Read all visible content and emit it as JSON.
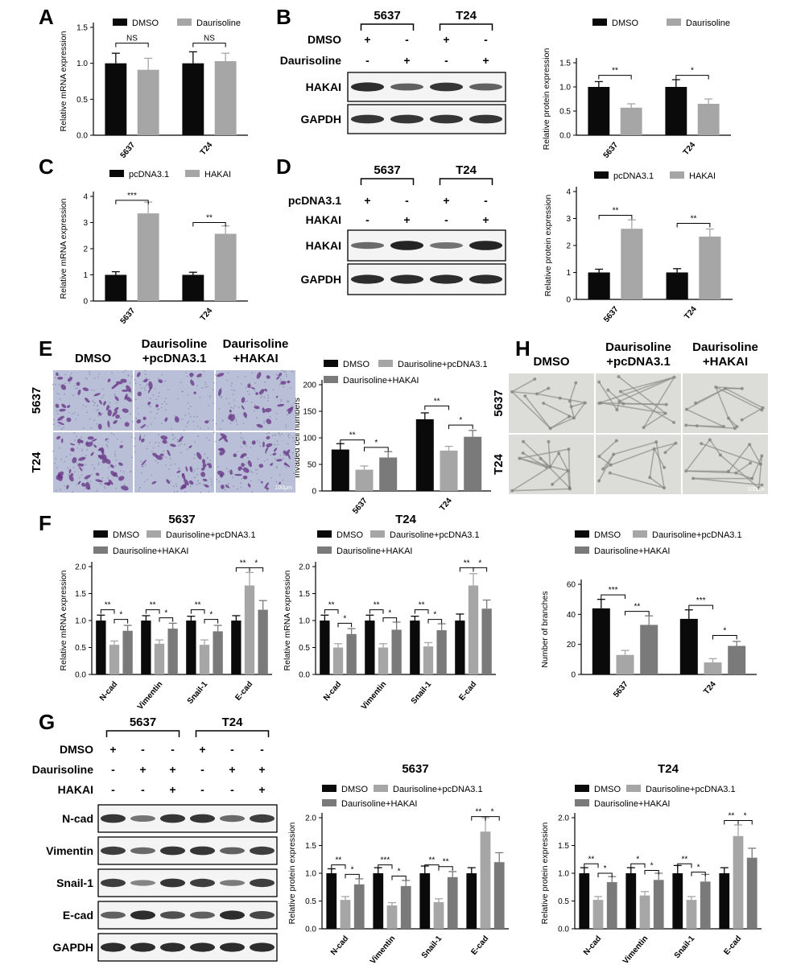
{
  "panels": {
    "A": "A",
    "B": "B",
    "C": "C",
    "D": "D",
    "E": "E",
    "F": "F",
    "G": "G",
    "H": "H"
  },
  "colors": {
    "black": "#0a0a0a",
    "light": "#a6a6a6",
    "dark": "#7a7a7a",
    "stain": "#6a3a8a",
    "stain_bg": "#b9bfd6",
    "tube_bg": "#dcdcd8"
  },
  "blot_B": {
    "groups": [
      "5637",
      "T24"
    ],
    "rows": [
      {
        "label": "DMSO",
        "marks": [
          "+",
          "-",
          "+",
          "-"
        ]
      },
      {
        "label": "Daurisoline",
        "marks": [
          "-",
          "+",
          "-",
          "+"
        ]
      }
    ],
    "bands": [
      {
        "label": "HAKAI",
        "intensity": [
          0.9,
          0.6,
          0.85,
          0.6
        ]
      },
      {
        "label": "GAPDH",
        "intensity": [
          0.85,
          0.85,
          0.85,
          0.85
        ]
      }
    ]
  },
  "blot_D": {
    "groups": [
      "5637",
      "T24"
    ],
    "rows": [
      {
        "label": "pcDNA3.1",
        "marks": [
          "+",
          "-",
          "+",
          "-"
        ]
      },
      {
        "label": "HAKAI",
        "marks": [
          "-",
          "+",
          "-",
          "+"
        ]
      }
    ],
    "bands": [
      {
        "label": "HAKAI",
        "intensity": [
          0.55,
          0.95,
          0.5,
          0.95
        ]
      },
      {
        "label": "GAPDH",
        "intensity": [
          0.9,
          0.9,
          0.9,
          0.9
        ]
      }
    ]
  },
  "blot_G": {
    "groups": [
      "5637",
      "T24"
    ],
    "rows": [
      {
        "label": "DMSO",
        "marks": [
          "+",
          "-",
          "-",
          "+",
          "-",
          "-"
        ]
      },
      {
        "label": "Daurisoline",
        "marks": [
          "-",
          "+",
          "+",
          "-",
          "+",
          "+"
        ]
      },
      {
        "label": "HAKAI",
        "marks": [
          "-",
          "-",
          "+",
          "-",
          "-",
          "+"
        ]
      }
    ],
    "bands": [
      {
        "label": "N-cad",
        "intensity": [
          0.85,
          0.5,
          0.85,
          0.85,
          0.55,
          0.8
        ]
      },
      {
        "label": "Vimentin",
        "intensity": [
          0.8,
          0.55,
          0.85,
          0.85,
          0.6,
          0.8
        ]
      },
      {
        "label": "Snail-1",
        "intensity": [
          0.8,
          0.4,
          0.85,
          0.8,
          0.45,
          0.8
        ]
      },
      {
        "label": "E-cad",
        "intensity": [
          0.6,
          0.9,
          0.7,
          0.6,
          0.9,
          0.75
        ]
      },
      {
        "label": "GAPDH",
        "intensity": [
          0.9,
          0.9,
          0.9,
          0.9,
          0.9,
          0.9
        ]
      }
    ]
  },
  "micro_E": {
    "cols": [
      "DMSO",
      "Daurisoline\n+pcDNA3.1",
      "Daurisoline\n+HAKAI"
    ],
    "rows": [
      "5637",
      "T24"
    ],
    "scale": "100μm",
    "density": [
      [
        0.55,
        0.25,
        0.4
      ],
      [
        0.75,
        0.45,
        0.6
      ]
    ]
  },
  "micro_H": {
    "cols": [
      "DMSO",
      "Daurisoline\n+pcDNA3.1",
      "Daurisoline\n+HAKAI"
    ],
    "rows": [
      "5637",
      "T24"
    ],
    "scale": "100μm"
  },
  "chart_data": [
    {
      "id": "A",
      "type": "bar",
      "title": "",
      "ylabel": "Relative mRNA expression",
      "categories": [
        "5637",
        "T24"
      ],
      "ylim": [
        0,
        1.5
      ],
      "yticks": [
        "0.0",
        "0.5",
        "1.0",
        "1.5"
      ],
      "series": [
        {
          "name": "DMSO",
          "values": [
            1.0,
            1.0
          ],
          "err": [
            0.14,
            0.16
          ]
        },
        {
          "name": "Daurisoline",
          "values": [
            0.91,
            1.03
          ],
          "err": [
            0.16,
            0.11
          ]
        }
      ],
      "sig": [
        {
          "cat": 0,
          "from": 0,
          "to": 1,
          "label": "NS",
          "y": 1.28
        },
        {
          "cat": 1,
          "from": 0,
          "to": 1,
          "label": "NS",
          "y": 1.28
        }
      ]
    },
    {
      "id": "B",
      "type": "bar",
      "title": "",
      "ylabel": "Relative protein expression",
      "categories": [
        "5637",
        "T24"
      ],
      "ylim": [
        0,
        1.5
      ],
      "yticks": [
        "0.0",
        "0.5",
        "1.0",
        "1.5"
      ],
      "series": [
        {
          "name": "DMSO",
          "values": [
            1.0,
            1.0
          ],
          "err": [
            0.11,
            0.15
          ]
        },
        {
          "name": "Daurisoline",
          "values": [
            0.57,
            0.65
          ],
          "err": [
            0.08,
            0.1
          ]
        }
      ],
      "sig": [
        {
          "cat": 0,
          "from": 0,
          "to": 1,
          "label": "**",
          "y": 1.24
        },
        {
          "cat": 1,
          "from": 0,
          "to": 1,
          "label": "*",
          "y": 1.24
        }
      ]
    },
    {
      "id": "C",
      "type": "bar",
      "title": "",
      "ylabel": "Relative mRNA expression",
      "categories": [
        "5637",
        "T24"
      ],
      "ylim": [
        0,
        4
      ],
      "yticks": [
        "0",
        "1",
        "2",
        "3",
        "4"
      ],
      "series": [
        {
          "name": "pcDNA3.1",
          "values": [
            1.0,
            1.0
          ],
          "err": [
            0.12,
            0.1
          ]
        },
        {
          "name": "HAKAI",
          "values": [
            3.35,
            2.57
          ],
          "err": [
            0.43,
            0.3
          ]
        }
      ],
      "sig": [
        {
          "cat": 0,
          "from": 0,
          "to": 1,
          "label": "***",
          "y": 3.85
        },
        {
          "cat": 1,
          "from": 0,
          "to": 1,
          "label": "**",
          "y": 3.0
        }
      ]
    },
    {
      "id": "D",
      "type": "bar",
      "title": "",
      "ylabel": "Relative protein expression",
      "categories": [
        "5637",
        "T24"
      ],
      "ylim": [
        0,
        4
      ],
      "yticks": [
        "0",
        "1",
        "2",
        "3",
        "4"
      ],
      "series": [
        {
          "name": "pcDNA3.1",
          "values": [
            1.0,
            1.0
          ],
          "err": [
            0.12,
            0.14
          ]
        },
        {
          "name": "HAKAI",
          "values": [
            2.62,
            2.33
          ],
          "err": [
            0.33,
            0.28
          ]
        }
      ],
      "sig": [
        {
          "cat": 0,
          "from": 0,
          "to": 1,
          "label": "**",
          "y": 3.12
        },
        {
          "cat": 1,
          "from": 0,
          "to": 1,
          "label": "**",
          "y": 2.82
        }
      ]
    },
    {
      "id": "E",
      "type": "bar",
      "title": "",
      "ylabel": "Invaded cell numbers",
      "categories": [
        "5637",
        "T24"
      ],
      "ylim": [
        0,
        200
      ],
      "yticks": [
        "0",
        "50",
        "100",
        "150",
        "200"
      ],
      "series": [
        {
          "name": "DMSO",
          "values": [
            78,
            135
          ],
          "err": [
            11,
            12
          ]
        },
        {
          "name": "Daurisoline+pcDNA3.1",
          "values": [
            40,
            76
          ],
          "err": [
            7,
            8
          ]
        },
        {
          "name": "Daurisoline+HAKAI",
          "values": [
            63,
            102
          ],
          "err": [
            11,
            12
          ]
        }
      ],
      "sig": [
        {
          "cat": 0,
          "from": 0,
          "to": 1,
          "label": "**",
          "y": 96
        },
        {
          "cat": 0,
          "from": 1,
          "to": 2,
          "label": "*",
          "y": 82
        },
        {
          "cat": 1,
          "from": 0,
          "to": 1,
          "label": "**",
          "y": 160
        },
        {
          "cat": 1,
          "from": 1,
          "to": 2,
          "label": "*",
          "y": 124
        }
      ]
    },
    {
      "id": "F1",
      "type": "bar",
      "title": "5637",
      "ylabel": "Relative mRNA expression",
      "categories": [
        "N-cad",
        "Vimentin",
        "Snail-1",
        "E-cad"
      ],
      "ylim": [
        0,
        2.0
      ],
      "yticks": [
        "0.0",
        "0.5",
        "1.0",
        "1.5",
        "2.0"
      ],
      "series": [
        {
          "name": "DMSO",
          "values": [
            1.0,
            1.0,
            1.0,
            1.0
          ],
          "err": [
            0.1,
            0.09,
            0.08,
            0.09
          ]
        },
        {
          "name": "Daurisoline+pcDNA3.1",
          "values": [
            0.55,
            0.57,
            0.55,
            1.65
          ],
          "err": [
            0.07,
            0.07,
            0.09,
            0.24
          ]
        },
        {
          "name": "Daurisoline+HAKAI",
          "values": [
            0.81,
            0.85,
            0.8,
            1.2
          ],
          "err": [
            0.1,
            0.1,
            0.11,
            0.17
          ]
        }
      ],
      "sig": [
        {
          "cat": 0,
          "from": 0,
          "to": 1,
          "label": "**",
          "y": 1.2
        },
        {
          "cat": 0,
          "from": 1,
          "to": 2,
          "label": "*",
          "y": 1.02
        },
        {
          "cat": 1,
          "from": 0,
          "to": 1,
          "label": "**",
          "y": 1.2
        },
        {
          "cat": 1,
          "from": 1,
          "to": 2,
          "label": "*",
          "y": 1.05
        },
        {
          "cat": 2,
          "from": 0,
          "to": 1,
          "label": "**",
          "y": 1.2
        },
        {
          "cat": 2,
          "from": 1,
          "to": 2,
          "label": "*",
          "y": 1.02
        },
        {
          "cat": 3,
          "from": 0,
          "to": 1,
          "label": "**",
          "y": 1.98
        },
        {
          "cat": 3,
          "from": 1,
          "to": 2,
          "label": "*",
          "y": 1.98
        }
      ]
    },
    {
      "id": "F2",
      "type": "bar",
      "title": "T24",
      "ylabel": "Relative mRNA expression",
      "categories": [
        "N-cad",
        "Vimentin",
        "Snail-1",
        "E-cad"
      ],
      "ylim": [
        0,
        2.0
      ],
      "yticks": [
        "0.0",
        "0.5",
        "1.0",
        "1.5",
        "2.0"
      ],
      "series": [
        {
          "name": "DMSO",
          "values": [
            1.0,
            1.0,
            1.0,
            1.0
          ],
          "err": [
            0.1,
            0.1,
            0.08,
            0.12
          ]
        },
        {
          "name": "Daurisoline+pcDNA3.1",
          "values": [
            0.5,
            0.5,
            0.52,
            1.65
          ],
          "err": [
            0.07,
            0.07,
            0.07,
            0.22
          ]
        },
        {
          "name": "Daurisoline+HAKAI",
          "values": [
            0.75,
            0.83,
            0.82,
            1.22
          ],
          "err": [
            0.1,
            0.14,
            0.12,
            0.16
          ]
        }
      ],
      "sig": [
        {
          "cat": 0,
          "from": 0,
          "to": 1,
          "label": "**",
          "y": 1.2
        },
        {
          "cat": 0,
          "from": 1,
          "to": 2,
          "label": "*",
          "y": 0.95
        },
        {
          "cat": 1,
          "from": 0,
          "to": 1,
          "label": "**",
          "y": 1.2
        },
        {
          "cat": 1,
          "from": 1,
          "to": 2,
          "label": "*",
          "y": 1.05
        },
        {
          "cat": 2,
          "from": 0,
          "to": 1,
          "label": "**",
          "y": 1.2
        },
        {
          "cat": 2,
          "from": 1,
          "to": 2,
          "label": "*",
          "y": 1.02
        },
        {
          "cat": 3,
          "from": 0,
          "to": 1,
          "label": "**",
          "y": 1.98
        },
        {
          "cat": 3,
          "from": 1,
          "to": 2,
          "label": "*",
          "y": 1.98
        }
      ]
    },
    {
      "id": "H",
      "type": "bar",
      "title": "",
      "ylabel": "Number of branches",
      "categories": [
        "5637",
        "T24"
      ],
      "ylim": [
        0,
        60
      ],
      "yticks": [
        "0",
        "20",
        "40",
        "60"
      ],
      "series": [
        {
          "name": "DMSO",
          "values": [
            44,
            37
          ],
          "err": [
            6,
            6
          ]
        },
        {
          "name": "Daurisoline+pcDNA3.1",
          "values": [
            13,
            8
          ],
          "err": [
            3,
            2.5
          ]
        },
        {
          "name": "Daurisoline+HAKAI",
          "values": [
            33,
            19
          ],
          "err": [
            6,
            3
          ]
        }
      ],
      "sig": [
        {
          "cat": 0,
          "from": 0,
          "to": 1,
          "label": "***",
          "y": 53
        },
        {
          "cat": 0,
          "from": 1,
          "to": 2,
          "label": "**",
          "y": 42
        },
        {
          "cat": 1,
          "from": 0,
          "to": 1,
          "label": "***",
          "y": 46
        },
        {
          "cat": 1,
          "from": 1,
          "to": 2,
          "label": "*",
          "y": 26
        }
      ]
    },
    {
      "id": "G1",
      "type": "bar",
      "title": "5637",
      "ylabel": "Relative protein expression",
      "categories": [
        "N-cad",
        "Vimentin",
        "Snail-1",
        "E-cad"
      ],
      "ylim": [
        0,
        2.0
      ],
      "yticks": [
        "0.0",
        "0.5",
        "1.0",
        "1.5",
        "2.0"
      ],
      "series": [
        {
          "name": "DMSO",
          "values": [
            1.0,
            1.0,
            1.0,
            1.0
          ],
          "err": [
            0.08,
            0.1,
            0.13,
            0.1
          ]
        },
        {
          "name": "Daurisoline+pcDNA3.1",
          "values": [
            0.52,
            0.42,
            0.48,
            1.75
          ],
          "err": [
            0.06,
            0.05,
            0.06,
            0.25
          ]
        },
        {
          "name": "Daurisoline+HAKAI",
          "values": [
            0.8,
            0.77,
            0.93,
            1.2
          ],
          "err": [
            0.1,
            0.1,
            0.1,
            0.17
          ]
        }
      ],
      "sig": [
        {
          "cat": 0,
          "from": 0,
          "to": 1,
          "label": "**",
          "y": 1.15
        },
        {
          "cat": 0,
          "from": 1,
          "to": 2,
          "label": "*",
          "y": 0.98
        },
        {
          "cat": 1,
          "from": 0,
          "to": 1,
          "label": "***",
          "y": 1.15
        },
        {
          "cat": 1,
          "from": 1,
          "to": 2,
          "label": "*",
          "y": 0.95
        },
        {
          "cat": 2,
          "from": 0,
          "to": 1,
          "label": "**",
          "y": 1.15
        },
        {
          "cat": 2,
          "from": 1,
          "to": 2,
          "label": "**",
          "y": 1.12
        },
        {
          "cat": 3,
          "from": 0,
          "to": 1,
          "label": "**",
          "y": 2.02
        },
        {
          "cat": 3,
          "from": 1,
          "to": 2,
          "label": "*",
          "y": 2.02
        }
      ]
    },
    {
      "id": "G2",
      "type": "bar",
      "title": "T24",
      "ylabel": "Relative protein expression",
      "categories": [
        "N-cad",
        "Vimentin",
        "Snail-1",
        "E-cad"
      ],
      "ylim": [
        0,
        2.0
      ],
      "yticks": [
        "0.0",
        "0.5",
        "1.0",
        "1.5",
        "2.0"
      ],
      "series": [
        {
          "name": "DMSO",
          "values": [
            1.0,
            1.0,
            1.0,
            1.0
          ],
          "err": [
            0.1,
            0.1,
            0.14,
            0.1
          ]
        },
        {
          "name": "Daurisoline+pcDNA3.1",
          "values": [
            0.52,
            0.6,
            0.52,
            1.67
          ],
          "err": [
            0.06,
            0.07,
            0.06,
            0.2
          ]
        },
        {
          "name": "Daurisoline+HAKAI",
          "values": [
            0.84,
            0.88,
            0.85,
            1.28
          ],
          "err": [
            0.1,
            0.12,
            0.13,
            0.17
          ]
        }
      ],
      "sig": [
        {
          "cat": 0,
          "from": 0,
          "to": 1,
          "label": "**",
          "y": 1.17
        },
        {
          "cat": 0,
          "from": 1,
          "to": 2,
          "label": "*",
          "y": 1.0
        },
        {
          "cat": 1,
          "from": 0,
          "to": 1,
          "label": "*",
          "y": 1.17
        },
        {
          "cat": 1,
          "from": 1,
          "to": 2,
          "label": "*",
          "y": 1.05
        },
        {
          "cat": 2,
          "from": 0,
          "to": 1,
          "label": "**",
          "y": 1.17
        },
        {
          "cat": 2,
          "from": 1,
          "to": 2,
          "label": "*",
          "y": 1.02
        },
        {
          "cat": 3,
          "from": 0,
          "to": 1,
          "label": "**",
          "y": 1.95
        },
        {
          "cat": 3,
          "from": 1,
          "to": 2,
          "label": "*",
          "y": 1.95
        }
      ]
    }
  ]
}
